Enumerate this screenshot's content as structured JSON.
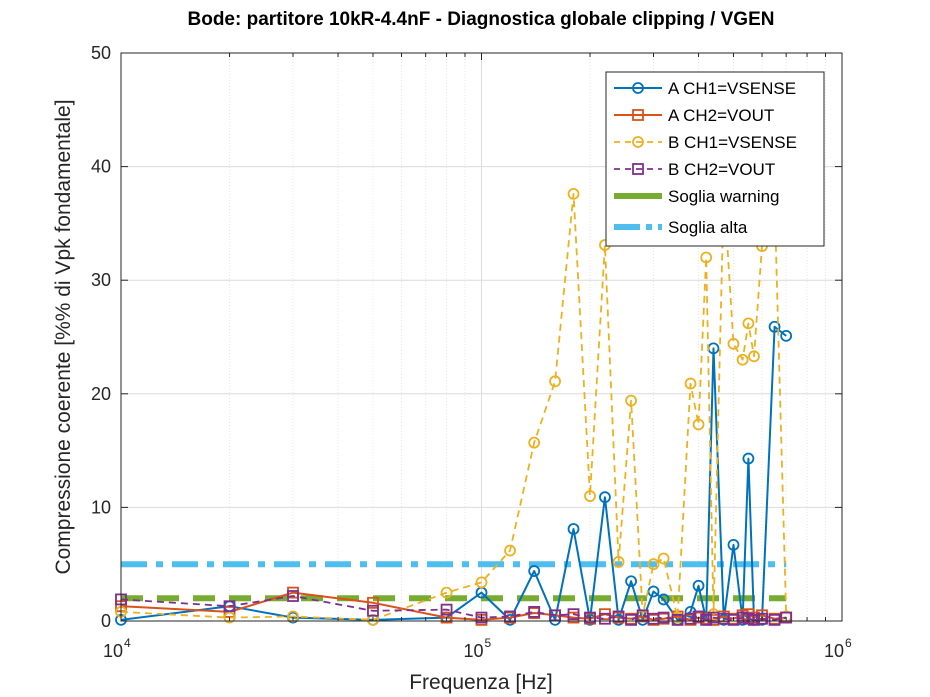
{
  "chart_data": {
    "type": "line",
    "title": "Bode: partitore 10kR-4.4nF - Diagnostica globale clipping / VGEN",
    "xlabel": "Frequenza [Hz]",
    "ylabel": "Compressione coerente [%% di Vpk fondamentale]",
    "xscale": "log",
    "xlim": [
      10000,
      1000000
    ],
    "ylim": [
      0,
      50
    ],
    "x_ticks": [
      {
        "value": 10000,
        "base": "10",
        "exp": "4"
      },
      {
        "value": 100000,
        "base": "10",
        "exp": "5"
      },
      {
        "value": 1000000,
        "base": "10",
        "exp": "6"
      }
    ],
    "y_ticks": [
      {
        "value": 0,
        "label": "0"
      },
      {
        "value": 10,
        "label": "10"
      },
      {
        "value": 20,
        "label": "20"
      },
      {
        "value": 30,
        "label": "30"
      },
      {
        "value": 40,
        "label": "40"
      },
      {
        "value": 50,
        "label": "50"
      }
    ],
    "grid": true,
    "legend_position": "top-right",
    "series": [
      {
        "name": "A CH1=VSENSE",
        "color": "#0072BD",
        "line": "solid",
        "marker": "circle",
        "x": [
          10000,
          20000,
          30000,
          50000,
          80000,
          100000,
          120000,
          140000,
          160000,
          180000,
          200000,
          220000,
          240000,
          260000,
          280000,
          300000,
          320000,
          350000,
          380000,
          400000,
          420000,
          440000,
          470000,
          500000,
          530000,
          550000,
          570000,
          600000,
          650000,
          700000
        ],
        "y": [
          0.1,
          1.3,
          0.3,
          0.1,
          0.3,
          2.5,
          0.1,
          4.4,
          0.1,
          8.1,
          0.1,
          10.9,
          0.1,
          3.5,
          0.1,
          2.6,
          1.9,
          0.1,
          0.8,
          3.1,
          0.1,
          24.0,
          0.1,
          6.7,
          0.1,
          14.3,
          0.1,
          0.1,
          25.9,
          25.1
        ]
      },
      {
        "name": "A CH2=VOUT",
        "color": "#D95319",
        "line": "solid",
        "marker": "square",
        "x": [
          10000,
          20000,
          30000,
          50000,
          80000,
          100000,
          120000,
          140000,
          160000,
          180000,
          200000,
          220000,
          240000,
          260000,
          280000,
          300000,
          320000,
          350000,
          380000,
          400000,
          420000,
          440000,
          470000,
          500000,
          530000,
          550000,
          570000,
          600000,
          650000,
          700000
        ],
        "y": [
          1.3,
          0.8,
          2.5,
          1.6,
          0.3,
          0.1,
          0.3,
          0.7,
          0.5,
          0.3,
          0.2,
          0.6,
          0.3,
          0.2,
          0.4,
          0.1,
          0.2,
          0.4,
          0.1,
          0.3,
          0.2,
          0.1,
          0.4,
          0.2,
          0.5,
          0.6,
          0.3,
          0.5,
          0.2,
          0.3
        ]
      },
      {
        "name": "B CH1=VSENSE",
        "color": "#EDB120",
        "line": "dashed",
        "marker": "circle",
        "x": [
          10000,
          20000,
          30000,
          50000,
          80000,
          100000,
          120000,
          140000,
          160000,
          180000,
          200000,
          220000,
          240000,
          260000,
          280000,
          300000,
          320000,
          350000,
          380000,
          400000,
          420000,
          440000,
          470000,
          500000,
          530000,
          550000,
          570000,
          600000,
          650000,
          700000
        ],
        "y": [
          0.8,
          0.3,
          0.4,
          0.1,
          2.5,
          3.4,
          6.2,
          15.7,
          21.1,
          37.6,
          11.0,
          33.1,
          5.2,
          19.4,
          0.5,
          5.0,
          5.5,
          0.3,
          20.9,
          17.3,
          32.0,
          0.6,
          38.0,
          24.4,
          23.0,
          26.2,
          23.3,
          33.0,
          37.0,
          0.4
        ]
      },
      {
        "name": "B CH2=VOUT",
        "color": "#7E2F8E",
        "line": "dashed",
        "marker": "square",
        "x": [
          10000,
          20000,
          30000,
          50000,
          80000,
          100000,
          120000,
          140000,
          160000,
          180000,
          200000,
          220000,
          240000,
          260000,
          280000,
          300000,
          320000,
          350000,
          380000,
          400000,
          420000,
          440000,
          470000,
          500000,
          530000,
          550000,
          570000,
          600000,
          650000,
          700000
        ],
        "y": [
          1.9,
          1.3,
          2.2,
          0.9,
          1.0,
          0.3,
          0.4,
          0.8,
          0.5,
          0.6,
          0.3,
          0.2,
          0.4,
          0.1,
          0.5,
          0.2,
          0.3,
          0.1,
          0.2,
          0.4,
          0.1,
          0.3,
          0.2,
          0.1,
          0.3,
          0.2,
          0.1,
          0.2,
          0.1,
          0.3
        ]
      },
      {
        "name": "Soglia warning",
        "color": "#77AC30",
        "line": "dashed-thick",
        "marker": "none",
        "x": [
          10000,
          700000
        ],
        "y": [
          2,
          2
        ]
      },
      {
        "name": "Soglia alta",
        "color": "#4DBEEE",
        "line": "dashdot-thick",
        "marker": "none",
        "x": [
          10000,
          700000
        ],
        "y": [
          5,
          5
        ]
      }
    ]
  }
}
